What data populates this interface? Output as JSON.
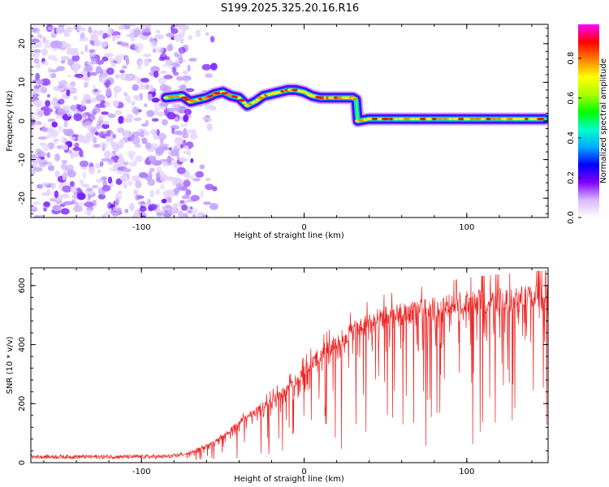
{
  "title": "S199.2025.325.20.16.R16",
  "chart_data": [
    {
      "type": "heatmap",
      "name": "spectrogram",
      "xlabel": "Height of straight line (km)",
      "ylabel": "Frequency (Hz)",
      "xlim": [
        -168,
        150
      ],
      "ylim": [
        -25,
        25
      ],
      "xticks": [
        -100,
        0,
        100
      ],
      "xtick_labels": [
        "-100",
        "0",
        "100"
      ],
      "yticks": [
        -20,
        -10,
        0,
        10,
        20
      ],
      "ytick_labels": [
        "-20",
        "-10",
        "0",
        "10",
        "20"
      ],
      "noise_region": {
        "x": [
          -168,
          -70
        ],
        "y": [
          -25,
          25
        ],
        "amplitude_range": [
          0.05,
          0.3
        ]
      },
      "signal_track": {
        "x": [
          -85,
          -75,
          -70,
          -65,
          -60,
          -55,
          -50,
          -45,
          -40,
          -35,
          -30,
          -25,
          -20,
          -15,
          -10,
          -5,
          0,
          5,
          10,
          15,
          20,
          25,
          30,
          32,
          33,
          40,
          50,
          60,
          70,
          80,
          90,
          100,
          110,
          120,
          130,
          140,
          148
        ],
        "y": [
          6,
          6.5,
          5,
          5.5,
          6,
          7,
          7.5,
          6.5,
          6,
          4,
          5,
          6.5,
          7,
          7.5,
          8,
          8,
          7.5,
          6.5,
          6,
          6,
          6,
          6,
          6,
          5.5,
          0,
          0.5,
          0.5,
          0.5,
          0.5,
          0.5,
          0.5,
          0.5,
          0.5,
          0.5,
          0.5,
          0.5,
          0.5
        ]
      },
      "grid": false
    },
    {
      "type": "line",
      "name": "snr",
      "xlabel": "Height of straight line (km)",
      "ylabel": "SNR (10 * v/v)",
      "xlim": [
        -168,
        150
      ],
      "ylim": [
        0,
        660
      ],
      "xticks": [
        -100,
        0,
        100
      ],
      "xtick_labels": [
        "-100",
        "0",
        "100"
      ],
      "yticks": [
        0,
        200,
        400,
        600
      ],
      "ytick_labels": [
        "0",
        "200",
        "400",
        "600"
      ],
      "series": [
        {
          "name": "SNR",
          "color": "#ee2222",
          "x": [
            -168,
            -140,
            -110,
            -90,
            -80,
            -70,
            -60,
            -50,
            -40,
            -30,
            -20,
            -10,
            0,
            10,
            20,
            30,
            40,
            50,
            60,
            70,
            80,
            90,
            100,
            110,
            120,
            130,
            140,
            150
          ],
          "y": [
            20,
            20,
            20,
            20,
            22,
            35,
            60,
            90,
            140,
            180,
            220,
            260,
            320,
            380,
            420,
            460,
            490,
            510,
            520,
            530,
            540,
            550,
            560,
            565,
            570,
            575,
            580,
            585
          ],
          "noise_amplitude": 0.3
        }
      ],
      "grid": false
    }
  ],
  "colorbar": {
    "label": "Normalized spectral amplitude",
    "ticks": [
      0.0,
      0.2,
      0.4,
      0.6,
      0.8
    ],
    "tick_labels": [
      "0.0",
      "0.2",
      "0.4",
      "0.6",
      "0.8"
    ],
    "range": [
      0,
      0.97
    ],
    "colormap": [
      "#ffffff",
      "#d8b8ff",
      "#8000ff",
      "#0000ff",
      "#00aaff",
      "#00ffcc",
      "#00ff00",
      "#aaff00",
      "#ffff00",
      "#ff8000",
      "#ff0000",
      "#ff00ff"
    ]
  }
}
